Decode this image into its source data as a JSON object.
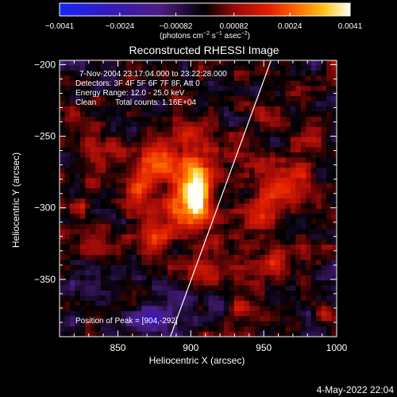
{
  "chart_data": {
    "type": "heatmap",
    "title": "Reconstructed RHESSI Image",
    "xlabel": "Heliocentric X (arcsec)",
    "ylabel": "Heliocentric Y (arcsec)",
    "xlim": [
      810,
      1000
    ],
    "ylim": [
      -390,
      -197
    ],
    "x_ticks": [
      {
        "value": 850,
        "label": "850"
      },
      {
        "value": 900,
        "label": "900"
      },
      {
        "value": 950,
        "label": "950"
      },
      {
        "value": 1000,
        "label": "1000"
      }
    ],
    "y_ticks": [
      {
        "value": -200,
        "label": "−200"
      },
      {
        "value": -250,
        "label": "−250"
      },
      {
        "value": -300,
        "label": "−300"
      },
      {
        "value": -350,
        "label": "−350"
      }
    ],
    "colorbar": {
      "min": -0.0041,
      "max": 0.0041,
      "unit_label": "(photons cm",
      "unit_sup1": "−2",
      "unit_mid": " s",
      "unit_sup2": "−1",
      "unit_tail": " asec",
      "unit_sup3": "−2",
      "unit_close": ")",
      "ticks": [
        {
          "value": -0.0041,
          "label": "−0.0041"
        },
        {
          "value": -0.0024,
          "label": "−0.0024"
        },
        {
          "value": -0.00082,
          "label": "−0.00082"
        },
        {
          "value": 0.00082,
          "label": "0.00082"
        },
        {
          "value": 0.0024,
          "label": "0.0024"
        },
        {
          "value": 0.0041,
          "label": "0.0041"
        }
      ]
    },
    "annotations": {
      "time_range": "7-Nov-2004 23:17:04.000 to 23:22:28.000",
      "detectors": "Detectors: 3F 4F 5F 6F 7F 8F, Att 0",
      "energy": "Energy Range: 12.0 - 25.0 keV",
      "method": "Clean",
      "counts": "Total counts: 1.16E+04",
      "peak": "Position of Peak = [904,-292]"
    },
    "peak_position": [
      904,
      -292
    ],
    "limb_line": [
      {
        "x": 886,
        "y": -390
      },
      {
        "x": 955,
        "y": -197
      }
    ],
    "blobs": [
      {
        "x": 904,
        "y": -292,
        "sx": 5,
        "sy": 11,
        "amp": 0.0041
      },
      {
        "x": 901,
        "y": -282,
        "sx": 13,
        "sy": 20,
        "amp": 0.0021
      },
      {
        "x": 880,
        "y": -268,
        "sx": 10,
        "sy": 10,
        "amp": 0.0017
      },
      {
        "x": 866,
        "y": -286,
        "sx": 8,
        "sy": 14,
        "amp": 0.0016
      },
      {
        "x": 842,
        "y": -262,
        "sx": 8,
        "sy": 8,
        "amp": 0.0012
      },
      {
        "x": 887,
        "y": -311,
        "sx": 9,
        "sy": 8,
        "amp": 0.0014
      },
      {
        "x": 874,
        "y": -320,
        "sx": 7,
        "sy": 7,
        "amp": 0.0013
      },
      {
        "x": 896,
        "y": -222,
        "sx": 6,
        "sy": 5,
        "amp": 0.0011
      },
      {
        "x": 938,
        "y": -265,
        "sx": 8,
        "sy": 8,
        "amp": 0.0013
      },
      {
        "x": 955,
        "y": -290,
        "sx": 8,
        "sy": 14,
        "amp": 0.0014
      },
      {
        "x": 943,
        "y": -306,
        "sx": 9,
        "sy": 7,
        "amp": 0.0012
      },
      {
        "x": 975,
        "y": -278,
        "sx": 9,
        "sy": 18,
        "amp": 0.0013
      },
      {
        "x": 990,
        "y": -243,
        "sx": 6,
        "sy": 6,
        "amp": 0.0012
      },
      {
        "x": 960,
        "y": -338,
        "sx": 13,
        "sy": 8,
        "amp": 0.0013
      },
      {
        "x": 910,
        "y": -345,
        "sx": 10,
        "sy": 8,
        "amp": 0.0012
      },
      {
        "x": 938,
        "y": -368,
        "sx": 7,
        "sy": 6,
        "amp": 0.0011
      },
      {
        "x": 993,
        "y": -376,
        "sx": 5,
        "sy": 5,
        "amp": 0.0013
      },
      {
        "x": 824,
        "y": -300,
        "sx": 5,
        "sy": 5,
        "amp": 0.0012
      },
      {
        "x": 838,
        "y": -320,
        "sx": 6,
        "sy": 5,
        "amp": 0.0009
      },
      {
        "x": 820,
        "y": -236,
        "sx": 5,
        "sy": 5,
        "amp": 0.0007
      },
      {
        "x": 947,
        "y": -234,
        "sx": 6,
        "sy": 5,
        "amp": 0.001
      },
      {
        "x": 974,
        "y": -218,
        "sx": 6,
        "sy": 4,
        "amp": 0.0007
      },
      {
        "x": 870,
        "y": -378,
        "sx": 10,
        "sy": 5,
        "amp": -0.0028
      },
      {
        "x": 895,
        "y": -365,
        "sx": 8,
        "sy": 6,
        "amp": -0.0011
      },
      {
        "x": 830,
        "y": -355,
        "sx": 9,
        "sy": 10,
        "amp": -0.0007
      },
      {
        "x": 845,
        "y": -215,
        "sx": 10,
        "sy": 8,
        "amp": -0.0006
      }
    ]
  },
  "footer": {
    "date": "4-May-2022 22:04"
  }
}
